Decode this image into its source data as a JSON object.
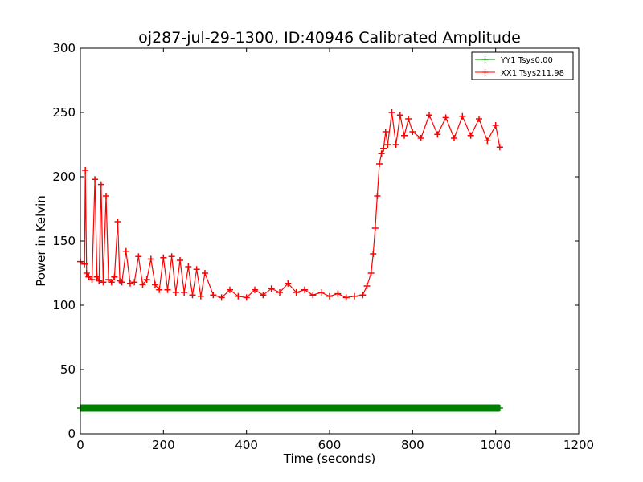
{
  "chart_data": {
    "type": "line",
    "title": "oj287-jul-29-1300, ID:40946 Calibrated Amplitude",
    "xlabel": "Time (seconds)",
    "ylabel": "Power in Kelvin",
    "xlim": [
      0,
      1200
    ],
    "ylim": [
      0,
      300
    ],
    "xticks": [
      0,
      200,
      400,
      600,
      800,
      1000,
      1200
    ],
    "yticks": [
      0,
      50,
      100,
      150,
      200,
      250,
      300
    ],
    "grid": false,
    "legend_position": "top-right",
    "series": [
      {
        "name": "YY1 Tsys0.00",
        "color": "#008000",
        "marker": "plus",
        "x": [
          0,
          100,
          200,
          300,
          400,
          500,
          600,
          700,
          800,
          900,
          1000,
          1010
        ],
        "y": [
          20,
          20,
          20,
          20,
          20,
          20,
          20,
          20,
          20,
          20,
          20,
          20
        ]
      },
      {
        "name": "XX1 Tsys211.98",
        "color": "#ff0000",
        "marker": "plus",
        "x": [
          0,
          10,
          12,
          15,
          20,
          28,
          35,
          40,
          45,
          50,
          55,
          62,
          68,
          75,
          82,
          90,
          95,
          100,
          110,
          120,
          130,
          140,
          150,
          160,
          170,
          180,
          190,
          200,
          210,
          220,
          230,
          240,
          250,
          260,
          270,
          280,
          290,
          300,
          320,
          340,
          360,
          380,
          400,
          420,
          440,
          460,
          480,
          500,
          520,
          540,
          560,
          580,
          600,
          620,
          640,
          660,
          680,
          690,
          700,
          705,
          710,
          715,
          720,
          725,
          730,
          735,
          740,
          750,
          760,
          770,
          780,
          790,
          800,
          820,
          840,
          860,
          880,
          900,
          920,
          940,
          960,
          980,
          1000,
          1010
        ],
        "y": [
          134,
          132,
          205,
          125,
          122,
          120,
          198,
          122,
          119,
          194,
          118,
          185,
          120,
          118,
          122,
          165,
          119,
          118,
          142,
          117,
          118,
          138,
          116,
          120,
          136,
          116,
          112,
          137,
          112,
          138,
          110,
          135,
          110,
          130,
          108,
          128,
          107,
          125,
          108,
          106,
          112,
          107,
          106,
          112,
          108,
          113,
          110,
          117,
          110,
          112,
          108,
          110,
          107,
          109,
          106,
          107,
          108,
          115,
          125,
          140,
          160,
          185,
          210,
          218,
          222,
          235,
          225,
          250,
          225,
          248,
          232,
          245,
          235,
          230,
          248,
          233,
          246,
          230,
          247,
          232,
          245,
          228,
          240,
          223
        ]
      }
    ]
  }
}
